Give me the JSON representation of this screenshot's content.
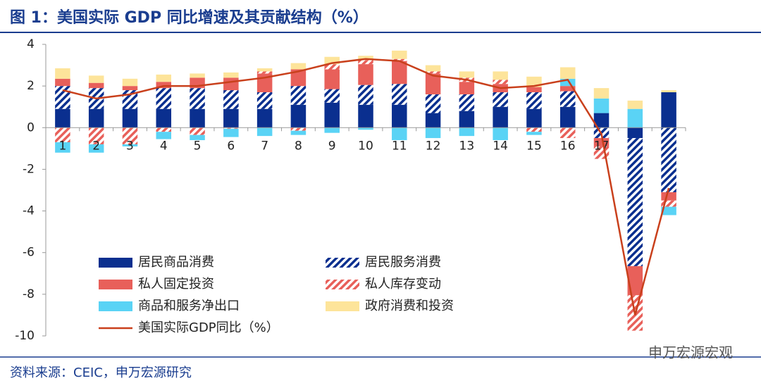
{
  "chart_data": {
    "type": "bar",
    "stacked": true,
    "title": "图 1：美国实际 GDP 同比增速及其贡献结构（%）",
    "source": "资料来源：CEIC，申万宏源研究",
    "watermark": "申万宏源宏观",
    "categories": [
      "1",
      "2",
      "3",
      "4",
      "5",
      "6",
      "7",
      "8",
      "9",
      "10",
      "11",
      "12",
      "13",
      "14",
      "15",
      "16",
      "17",
      null,
      null
    ],
    "ylim": [
      -10,
      4
    ],
    "yticks": [
      4,
      2,
      0,
      -2,
      -4,
      -6,
      -8,
      -10
    ],
    "grid": false,
    "series": [
      {
        "name": "居民商品消费",
        "color": "#0a2f8f",
        "hatch": false,
        "values": [
          0.9,
          0.9,
          0.9,
          0.9,
          0.9,
          0.9,
          0.9,
          1.1,
          1.2,
          1.1,
          1.1,
          0.7,
          0.8,
          1.0,
          0.9,
          1.0,
          0.7,
          -0.5,
          1.7
        ]
      },
      {
        "name": "居民服务消费",
        "color": "#0a2f8f",
        "hatch": true,
        "values": [
          1.1,
          1.0,
          0.9,
          1.0,
          1.0,
          0.9,
          0.8,
          0.9,
          0.65,
          0.95,
          1.0,
          0.9,
          0.8,
          0.7,
          0.8,
          0.75,
          -0.5,
          -6.15,
          -3.1
        ]
      },
      {
        "name": "私人固定投资",
        "color": "#e8605a",
        "hatch": false,
        "values": [
          0.35,
          0.25,
          0.2,
          0.3,
          0.5,
          0.6,
          0.9,
          0.8,
          0.95,
          1.0,
          1.1,
          1.0,
          0.6,
          0.4,
          0.25,
          0.25,
          -0.4,
          -1.4,
          -0.4
        ]
      },
      {
        "name": "私人库存变动",
        "color": "#e8605a",
        "hatch": true,
        "values": [
          -0.7,
          -0.8,
          -0.8,
          -0.2,
          -0.35,
          -0.05,
          0.1,
          -0.15,
          0.25,
          0.2,
          0.1,
          0.1,
          0.2,
          0.2,
          -0.2,
          -0.5,
          -0.6,
          -1.7,
          -0.3
        ]
      },
      {
        "name": "商品和服务净出口",
        "color": "#5ad3f5",
        "hatch": false,
        "values": [
          -0.5,
          -0.4,
          -0.1,
          -0.35,
          -0.25,
          -0.4,
          -0.4,
          -0.2,
          -0.25,
          -0.1,
          -0.6,
          -0.5,
          -0.4,
          -0.6,
          -0.15,
          0.35,
          0.7,
          0.9,
          -0.4
        ]
      },
      {
        "name": "政府消费和投资",
        "color": "#fde49a",
        "hatch": false,
        "values": [
          0.5,
          0.35,
          0.35,
          0.35,
          0.2,
          0.25,
          0.15,
          0.3,
          0.35,
          0.2,
          0.4,
          0.3,
          0.3,
          0.4,
          0.5,
          0.55,
          0.5,
          0.4,
          0.1
        ]
      }
    ],
    "line": {
      "name": "美国实际GDP同比（%）",
      "color": "#c9401c",
      "values": [
        1.8,
        1.4,
        1.6,
        2.0,
        2.0,
        2.2,
        2.4,
        2.7,
        3.1,
        3.3,
        3.2,
        2.5,
        2.3,
        1.9,
        2.0,
        2.3,
        -0.3,
        -9.0,
        -2.9
      ]
    }
  }
}
